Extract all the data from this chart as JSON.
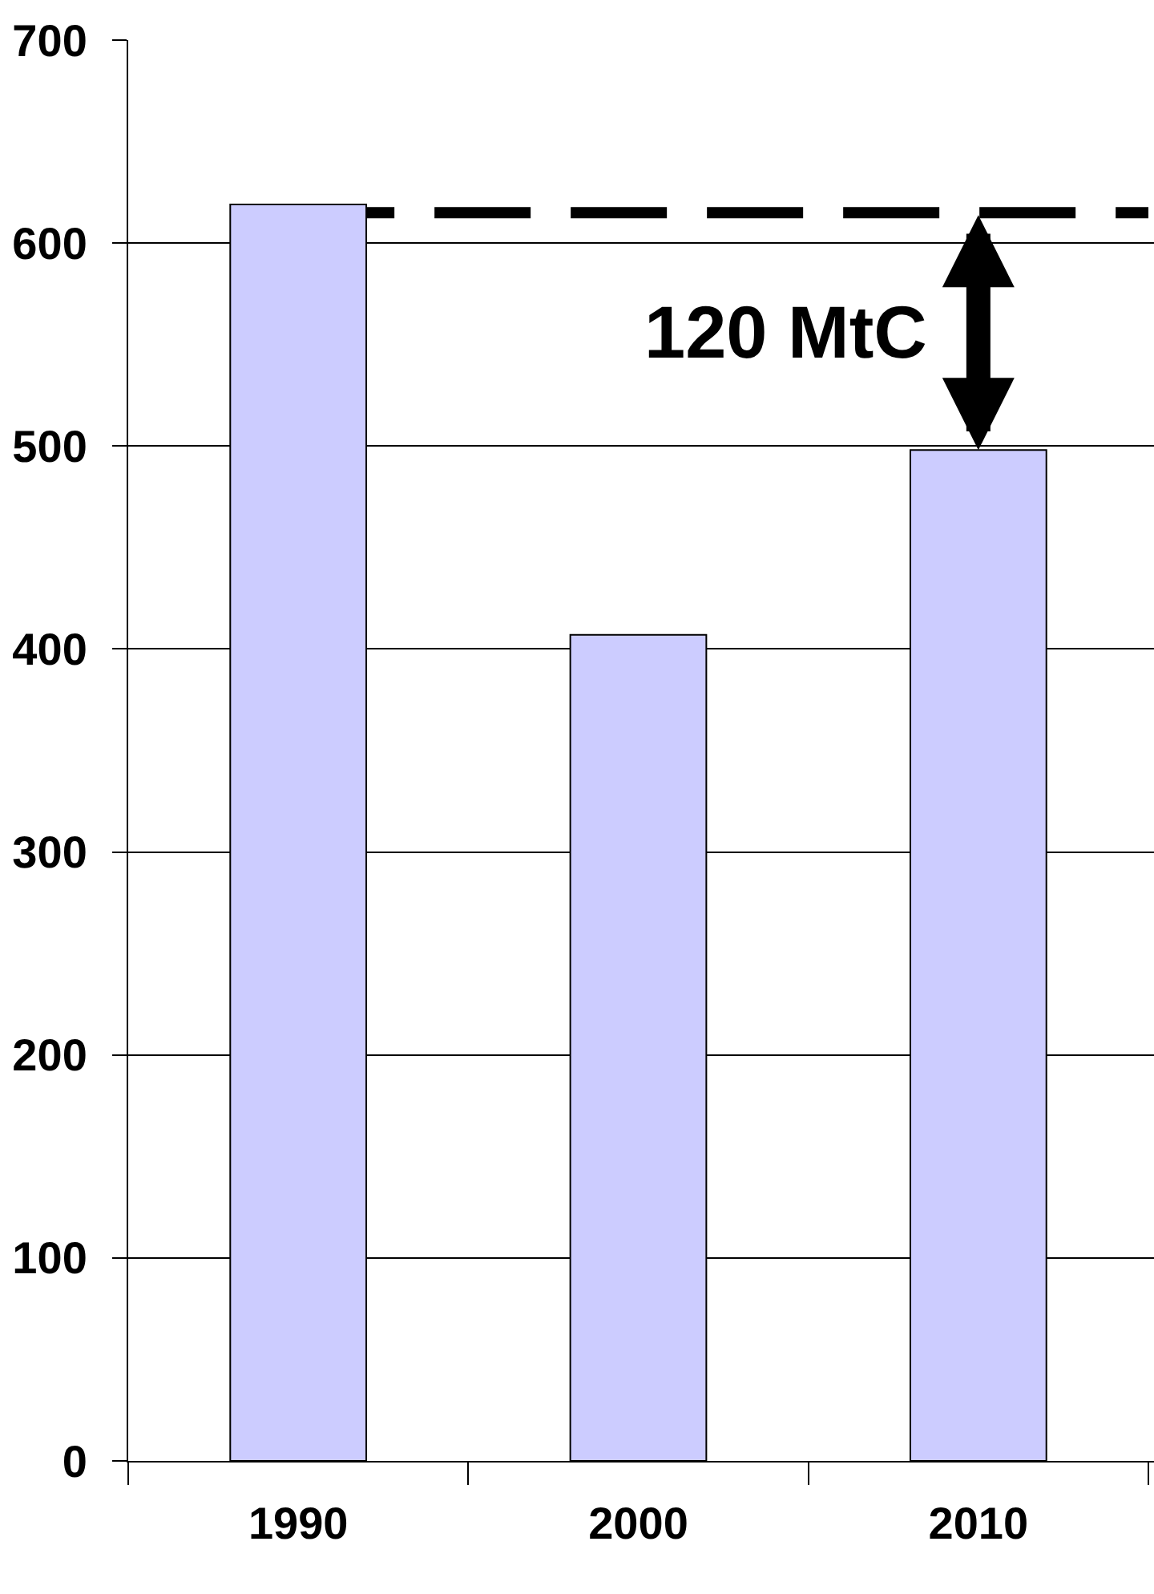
{
  "chart_data": {
    "type": "bar",
    "categories": [
      "1990",
      "2000",
      "2010"
    ],
    "values": [
      619,
      407,
      498
    ],
    "color": "#ccccff",
    "ylim": [
      0,
      700
    ],
    "yticks": [
      0,
      100,
      200,
      300,
      400,
      500,
      600,
      700
    ],
    "grid": "y",
    "ref_lines": [
      {
        "axis": "y",
        "value": 615,
        "line_style": "dashed",
        "color": "#000000"
      }
    ],
    "annotations": [
      "120 MtC"
    ]
  }
}
